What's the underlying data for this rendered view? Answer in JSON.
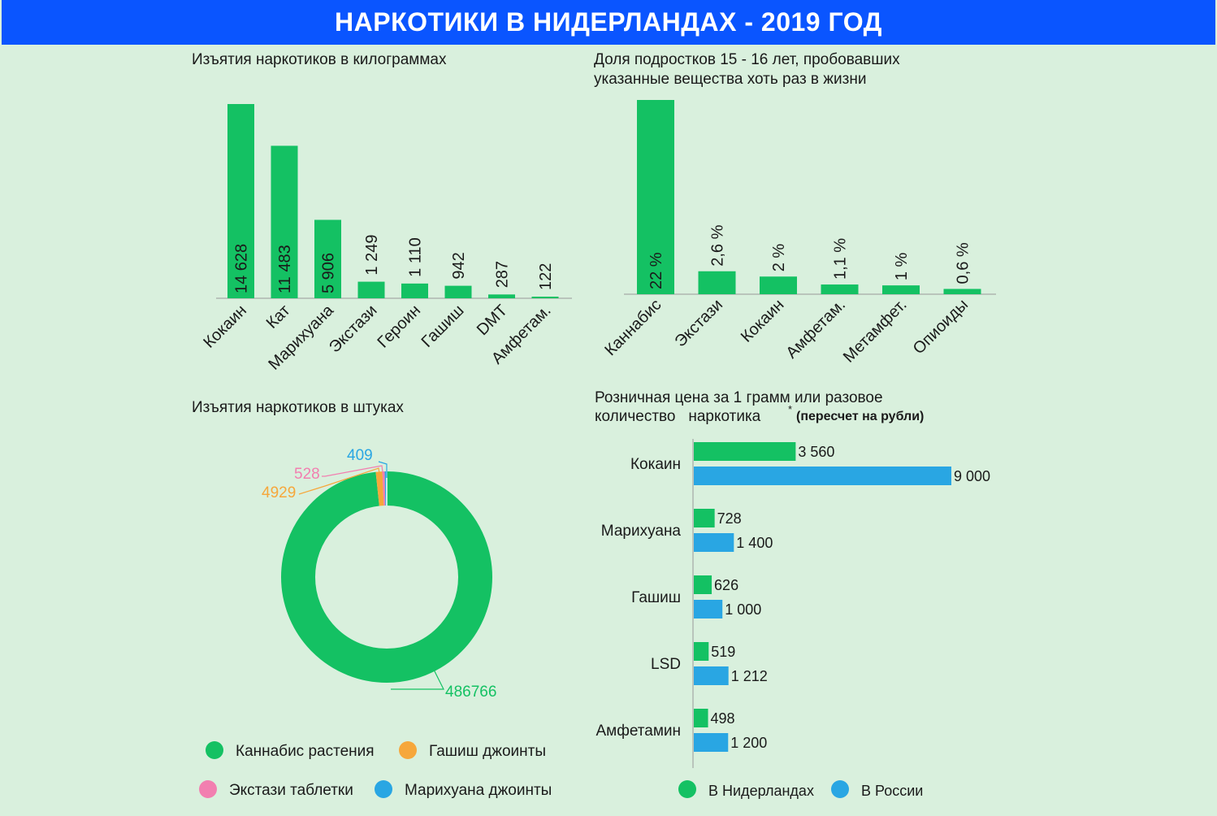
{
  "header": {
    "title": "НАРКОТИКИ В НИДЕРЛАНДАХ - 2019 ГОД"
  },
  "colors": {
    "background": "#d9f0dd",
    "banner": "#0a55ff",
    "green": "#14c163",
    "blue": "#29a6e3",
    "orange": "#f6a73b",
    "pink": "#f27fb0"
  },
  "chart_data": [
    {
      "type": "bar",
      "title": "Изъятия наркотиков в килограммах",
      "categories": [
        "Кокаин",
        "Кат",
        "Марихуана",
        "Экстази",
        "Героин",
        "Гашиш",
        "DMT",
        "Амфетам."
      ],
      "values": [
        14628,
        11483,
        5906,
        1249,
        1110,
        942,
        287,
        122
      ],
      "data_labels": [
        "14 628",
        "11 483",
        "5 906",
        "1 249",
        "1 110",
        "942",
        "287",
        "122"
      ],
      "ylim": [
        0,
        15000
      ]
    },
    {
      "type": "bar",
      "title": "Доля подростков 15 - 16 лет, пробовавших указанные вещества хоть раз в жизни",
      "categories": [
        "Каннабис",
        "Экстази",
        "Кокаин",
        "Амфетам.",
        "Метамфет.",
        "Опиоиды"
      ],
      "values": [
        22,
        2.6,
        2,
        1.1,
        1,
        0.6
      ],
      "data_labels": [
        "22 %",
        "2,6 %",
        "2 %",
        "1,1 %",
        "1 %",
        "0,6 %"
      ],
      "ylim": [
        0,
        22
      ]
    },
    {
      "type": "pie",
      "title": "Изъятия наркотиков в штуках",
      "slices": [
        {
          "name": "Каннабис растения",
          "value": 486766,
          "label": "486766",
          "color": "#14c163"
        },
        {
          "name": "Гашиш джоинты",
          "value": 4929,
          "label": "4929",
          "color": "#f6a73b"
        },
        {
          "name": "Экстази таблетки",
          "value": 528,
          "label": "528",
          "color": "#f27fb0"
        },
        {
          "name": "Марихуана джоинты",
          "value": 409,
          "label": "409",
          "color": "#29a6e3"
        }
      ],
      "legend": [
        "Каннабис растения",
        "Гашиш джоинты",
        "Экстази таблетки",
        "Марихуана джоинты"
      ]
    },
    {
      "type": "bar",
      "orientation": "horizontal",
      "title_line1": "Розничная цена за 1 грамм или разовое",
      "title_line2": "количество   наркотика",
      "title_mark": "*",
      "title_note": "(пересчет на рубли)",
      "categories": [
        "Кокаин",
        "Марихуана",
        "Гашиш",
        "LSD",
        "Амфетамин"
      ],
      "series": [
        {
          "name": "В Нидерландах",
          "color": "#14c163",
          "values": [
            3560,
            728,
            626,
            519,
            498
          ],
          "labels": [
            "3 560",
            "728",
            "626",
            "519",
            "498"
          ]
        },
        {
          "name": "В России",
          "color": "#29a6e3",
          "values": [
            9000,
            1400,
            1000,
            1212,
            1200
          ],
          "labels": [
            "9 000",
            "1 400",
            "1 000",
            "1 212",
            "1 200"
          ]
        }
      ],
      "xlim": [
        0,
        9000
      ]
    }
  ]
}
